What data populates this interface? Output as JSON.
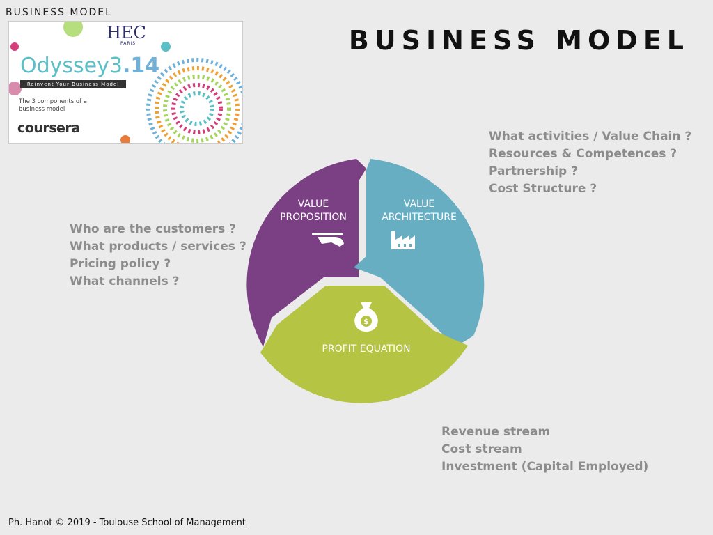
{
  "header": {
    "top_label": "BUSINESS MODEL",
    "title": "BUSINESS MODEL"
  },
  "thumbnail": {
    "hec": "HEC",
    "hec_sub": "PARIS",
    "odyssey_a": "Odyssey3",
    "odyssey_b": ".14",
    "tagline": "Reinvent Your Business Model",
    "subtitle": "The 3 components of a business model",
    "coursera": "coursera"
  },
  "diagram": {
    "segments": [
      {
        "label_line1": "VALUE",
        "label_line2": "PROPOSITION",
        "color": "#7b4083",
        "icon": "hand-tray-icon"
      },
      {
        "label_line1": "VALUE",
        "label_line2": "ARCHITECTURE",
        "color": "#67aec2",
        "icon": "factory-icon"
      },
      {
        "label_line1": "PROFIT EQUATION",
        "label_line2": "",
        "color": "#b5c442",
        "icon": "money-bag-icon"
      }
    ]
  },
  "questions": {
    "left": [
      "Who are the customers ?",
      "What products / services ?",
      "Pricing policy ?",
      "What channels ?"
    ],
    "right": [
      "What activities / Value Chain ?",
      "Resources & Competences ?",
      "Partnership ?",
      "Cost Structure ?"
    ],
    "bottom": [
      "Revenue stream",
      "Cost stream",
      "Investment (Capital Employed)"
    ]
  },
  "footer": "Ph. Hanot © 2019  -  Toulouse School of Management"
}
